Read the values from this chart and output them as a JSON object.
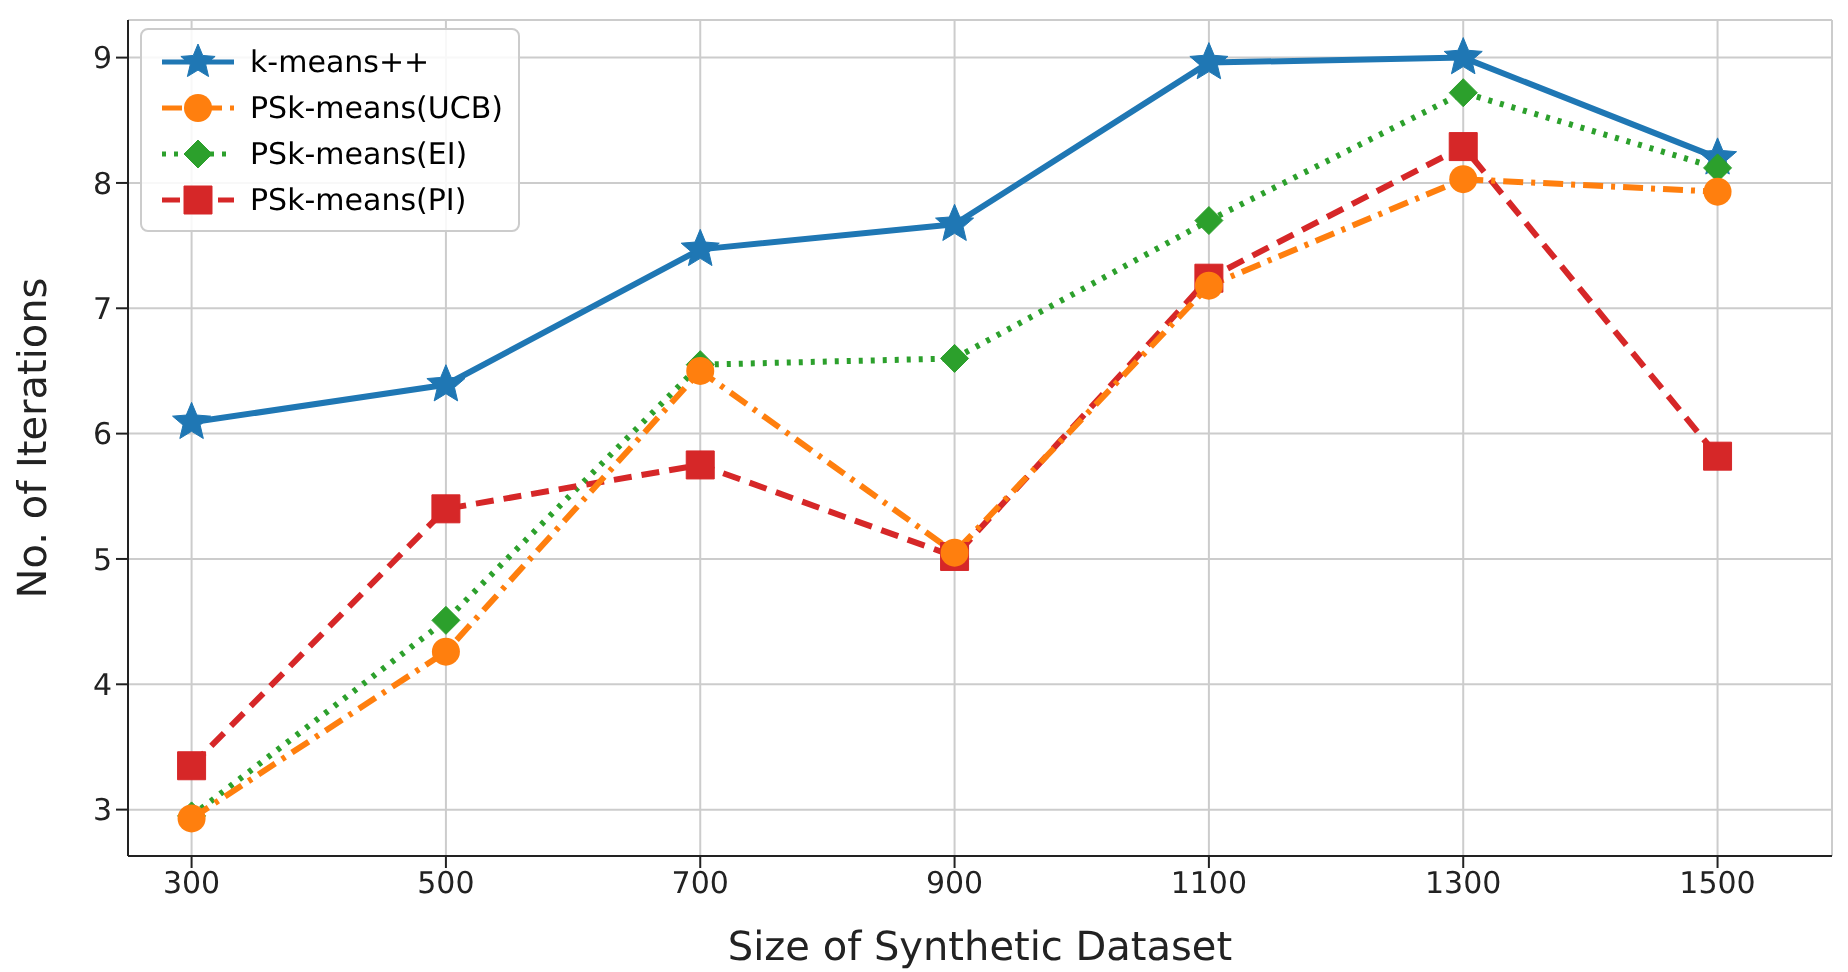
{
  "chart_data": {
    "type": "line",
    "xlabel": "Size of Synthetic Dataset",
    "ylabel": "No. of Iterations",
    "x": [
      300,
      500,
      700,
      900,
      1100,
      1300,
      1500
    ],
    "xlim": [
      250,
      1590
    ],
    "xticks": [
      300,
      500,
      700,
      900,
      1100,
      1300,
      1500
    ],
    "ylim": [
      2.63,
      9.3
    ],
    "yticks": [
      3,
      4,
      5,
      6,
      7,
      8,
      9
    ],
    "grid": true,
    "legend": "top left",
    "series": [
      {
        "name": "k-means++",
        "color": "#1f77b4",
        "marker": "star",
        "line_style": "solid",
        "values": [
          6.09,
          6.39,
          7.47,
          7.67,
          8.96,
          9.0,
          8.2
        ]
      },
      {
        "name": "PSk-means(UCB)",
        "color": "#ff7f0e",
        "marker": "circle",
        "line_style": "dashdot",
        "values": [
          2.93,
          4.26,
          6.5,
          5.05,
          7.18,
          8.03,
          7.93
        ]
      },
      {
        "name": "PSk-means(EI)",
        "color": "#2ca02c",
        "marker": "diamond",
        "line_style": "dotted",
        "values": [
          2.95,
          4.51,
          6.55,
          6.6,
          7.7,
          8.72,
          8.12
        ]
      },
      {
        "name": "PSk-means(PI)",
        "color": "#d62728",
        "marker": "square",
        "line_style": "dashed",
        "values": [
          3.35,
          5.4,
          5.75,
          5.02,
          7.24,
          8.29,
          5.82
        ]
      }
    ]
  }
}
